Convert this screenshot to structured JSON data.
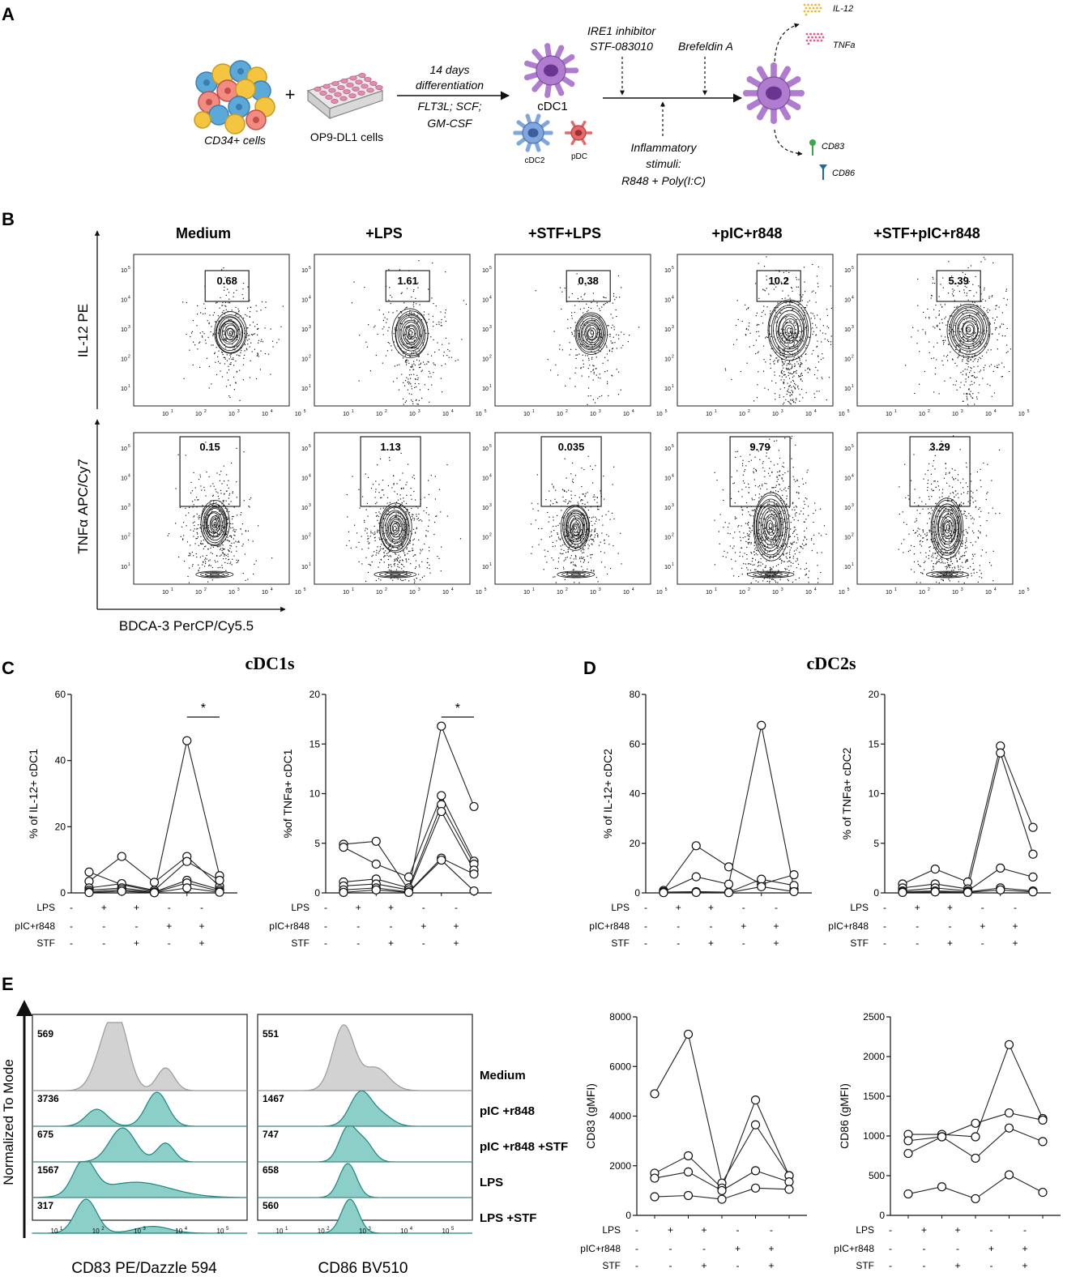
{
  "panels": {
    "A": {
      "label": "A",
      "cd34": "CD34+ cells",
      "plus": "+",
      "op9": "OP9-DL1 cells",
      "diff_line1": "14 days",
      "diff_line2": "differentiation",
      "diff_line3": "FLT3L; SCF;",
      "diff_line4": "GM-CSF",
      "cdc1": "cDC1",
      "cdc2": "cDC2",
      "pdc": "pDC",
      "ire1_1": "IRE1 inhibitor",
      "ire1_2": "STF-083010",
      "brefeldin": "Brefeldin A",
      "infl_1": "Inflammatory",
      "infl_2": "stimuli:",
      "infl_3": "R848 + Poly(I:C)",
      "il12": "IL-12",
      "tnfa": "TNFa",
      "cd83": "CD83",
      "cd86": "CD86"
    },
    "B": {
      "label": "B",
      "columns": [
        "Medium",
        "+LPS",
        "+STF+LPS",
        "+pIC+r848",
        "+STF+pIC+r848"
      ],
      "il12_values": [
        "0.68",
        "1.61",
        "0.38",
        "10.2",
        "5.39"
      ],
      "tnf_values": [
        "0.15",
        "1.13",
        "0.035",
        "9.79",
        "3.29"
      ],
      "ylabel_top": "IL-12 PE",
      "ylabel_bottom": "TNFα APC/Cy7",
      "xlabel": "BDCA-3 PerCP/Cy5.5",
      "tick_labels": [
        "10",
        "10",
        "10",
        "10",
        "10"
      ],
      "tick_exps": [
        "1",
        "2",
        "3",
        "4",
        "5"
      ]
    },
    "C": {
      "label": "C",
      "title": "cDC1s"
    },
    "D": {
      "label": "D",
      "title": "cDC2s"
    },
    "E": {
      "label": "E",
      "ylabel": "Normalized To Mode",
      "xlabel_left": "CD83 PE/Dazzle 594",
      "xlabel_right": "CD86 BV510",
      "rows": [
        "Medium",
        "pIC +r848",
        "pIC +r848 +STF",
        "LPS",
        "LPS +STF"
      ],
      "cd83_values": [
        "569",
        "3736",
        "675",
        "1567",
        "317"
      ],
      "cd86_values": [
        "551",
        "1467",
        "747",
        "658",
        "560"
      ]
    }
  },
  "condition_labels": {
    "lps": "LPS",
    "pic": "pIC+r848",
    "stf": "STF"
  },
  "condition_signs": {
    "lps": [
      "-",
      "+",
      "+",
      "-",
      "-"
    ],
    "pic": [
      "-",
      "-",
      "-",
      "+",
      "+"
    ],
    "stf": [
      "-",
      "-",
      "+",
      "-",
      "+"
    ]
  },
  "chart_data": [
    {
      "type": "line",
      "id": "c-il12",
      "ylabel": "% of IL-12+ cDC1",
      "ylim": [
        0,
        60
      ],
      "yticks": [
        0,
        20,
        40,
        60
      ],
      "significance": {
        "between": [
          3,
          4
        ],
        "label": "*"
      },
      "series": [
        {
          "values": [
            6.3,
            2.5,
            0.5,
            46.0,
            5.2
          ]
        },
        {
          "values": [
            3.5,
            11.0,
            3.2,
            11.0,
            2.0
          ]
        },
        {
          "values": [
            1.5,
            2.8,
            0.8,
            9.5,
            3.8
          ]
        },
        {
          "values": [
            0.8,
            1.5,
            0.3,
            3.8,
            1.0
          ]
        },
        {
          "values": [
            0.3,
            1.0,
            0.1,
            3.0,
            0.5
          ]
        },
        {
          "values": [
            0.1,
            0.5,
            0.05,
            1.5,
            0.2
          ]
        }
      ]
    },
    {
      "type": "line",
      "id": "c-tnf",
      "ylabel": "%of TNFa+ cDC1",
      "ylim": [
        0,
        20
      ],
      "yticks": [
        0,
        5,
        10,
        15,
        20
      ],
      "significance": {
        "between": [
          3,
          4
        ],
        "label": "*"
      },
      "series": [
        {
          "values": [
            4.9,
            5.2,
            0.3,
            16.8,
            8.7
          ]
        },
        {
          "values": [
            4.6,
            2.9,
            1.6,
            9.8,
            3.2
          ]
        },
        {
          "values": [
            1.1,
            1.4,
            0.5,
            8.9,
            2.9
          ]
        },
        {
          "values": [
            0.7,
            0.9,
            0.3,
            8.2,
            2.3
          ]
        },
        {
          "values": [
            0.3,
            0.5,
            0.1,
            3.5,
            1.9
          ]
        },
        {
          "values": [
            0.05,
            0.3,
            0.05,
            3.3,
            0.2
          ]
        }
      ]
    },
    {
      "type": "line",
      "id": "d-il12",
      "ylabel": "% of IL-12+ cDC2",
      "ylim": [
        0,
        80
      ],
      "yticks": [
        0,
        20,
        40,
        60,
        80
      ],
      "series": [
        {
          "values": [
            1.0,
            19.0,
            10.5,
            3.5,
            7.3
          ]
        },
        {
          "values": [
            0.5,
            6.5,
            3.5,
            67.5,
            1.5
          ]
        },
        {
          "values": [
            0.3,
            0.5,
            0.3,
            5.5,
            3.0
          ]
        },
        {
          "values": [
            0.1,
            0.2,
            0.1,
            2.5,
            0.5
          ]
        }
      ]
    },
    {
      "type": "line",
      "id": "d-tnf",
      "ylabel": "% of TNFa+ cDC2",
      "ylim": [
        0,
        20
      ],
      "yticks": [
        0,
        5,
        10,
        15,
        20
      ],
      "series": [
        {
          "values": [
            0.9,
            2.4,
            1.1,
            14.8,
            6.6
          ]
        },
        {
          "values": [
            0.5,
            0.9,
            0.4,
            14.1,
            3.9
          ]
        },
        {
          "values": [
            0.2,
            0.5,
            0.2,
            2.5,
            1.6
          ]
        },
        {
          "values": [
            0.1,
            0.2,
            0.1,
            0.5,
            0.2
          ]
        },
        {
          "values": [
            0.05,
            0.1,
            0.05,
            0.3,
            0.1
          ]
        }
      ]
    },
    {
      "type": "line",
      "id": "e-cd83",
      "ylabel": "CD83 (gMFI)",
      "ylim": [
        0,
        8000
      ],
      "yticks": [
        0,
        2000,
        4000,
        6000,
        8000
      ],
      "series": [
        {
          "values": [
            4900,
            7300,
            1300,
            3650,
            1600
          ]
        },
        {
          "values": [
            1700,
            2400,
            1100,
            4650,
            1600
          ]
        },
        {
          "values": [
            1500,
            1750,
            1000,
            1800,
            1350
          ]
        },
        {
          "values": [
            750,
            800,
            650,
            1100,
            1050
          ]
        }
      ]
    },
    {
      "type": "line",
      "id": "e-cd86",
      "ylabel": "CD86 (gMFI)",
      "ylim": [
        0,
        2500
      ],
      "yticks": [
        0,
        500,
        1000,
        1500,
        2000,
        2500
      ],
      "series": [
        {
          "values": [
            1020,
            1020,
            990,
            2150,
            1220
          ]
        },
        {
          "values": [
            940,
            990,
            1160,
            1290,
            1200
          ]
        },
        {
          "values": [
            780,
            990,
            720,
            1100,
            930
          ]
        },
        {
          "values": [
            270,
            360,
            210,
            510,
            290
          ]
        }
      ]
    }
  ]
}
